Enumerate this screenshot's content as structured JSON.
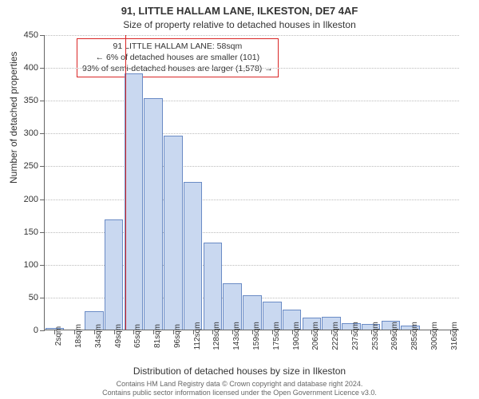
{
  "titles": {
    "main": "91, LITTLE HALLAM LANE, ILKESTON, DE7 4AF",
    "sub": "Size of property relative to detached houses in Ilkeston"
  },
  "axes": {
    "y_label": "Number of detached properties",
    "x_label": "Distribution of detached houses by size in Ilkeston",
    "ylim": [
      0,
      450
    ],
    "ytick_step": 50,
    "label_fontsize": 12,
    "tick_fontsize": 11
  },
  "chart": {
    "type": "histogram",
    "background_color": "#ffffff",
    "grid_color": "#bbbbbb",
    "axis_color": "#666666",
    "bar_fill": "#c9d8f0",
    "bar_stroke": "#6a8bc5",
    "bar_width": 0.95,
    "x_bins": [
      "2sqm",
      "18sqm",
      "34sqm",
      "49sqm",
      "65sqm",
      "81sqm",
      "96sqm",
      "112sqm",
      "128sqm",
      "143sqm",
      "159sqm",
      "175sqm",
      "190sqm",
      "206sqm",
      "222sqm",
      "237sqm",
      "253sqm",
      "269sqm",
      "285sqm",
      "300sqm",
      "316sqm"
    ],
    "values": [
      3,
      0,
      28,
      168,
      390,
      353,
      295,
      225,
      133,
      70,
      52,
      42,
      30,
      18,
      20,
      10,
      8,
      14,
      6,
      0,
      0
    ]
  },
  "marker": {
    "value_sqm": 58,
    "line_color": "#d92626"
  },
  "annotation": {
    "border_color": "#d92626",
    "lines": [
      "91 LITTLE HALLAM LANE: 58sqm",
      "← 6% of detached houses are smaller (101)",
      "93% of semi-detached houses are larger (1,578) →"
    ]
  },
  "footer": {
    "line1": "Contains HM Land Registry data © Crown copyright and database right 2024.",
    "line2": "Contains public sector information licensed under the Open Government Licence v3.0."
  }
}
